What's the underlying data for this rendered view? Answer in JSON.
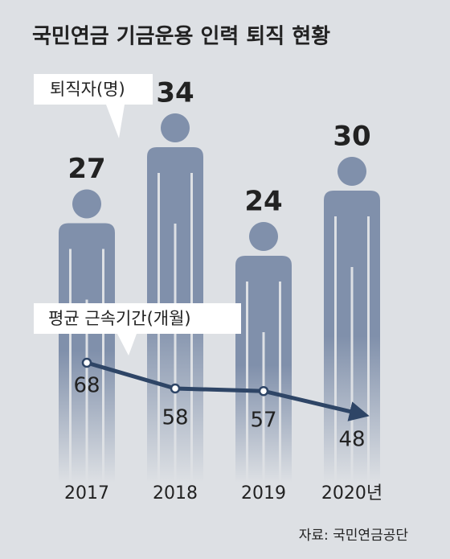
{
  "chart_data": {
    "type": "bar",
    "title": "국민연금 기금운용 인력 퇴직 현황",
    "categories": [
      "2017",
      "2018",
      "2019",
      "2020년"
    ],
    "series": [
      {
        "name": "퇴직자(명)",
        "type": "bar",
        "color": "#8090ab",
        "values": [
          27,
          34,
          24,
          30
        ]
      },
      {
        "name": "평균 근속기간(개월)",
        "type": "line",
        "color": "#2e4566",
        "values": [
          68,
          58,
          57,
          48
        ]
      }
    ],
    "source": "자료: 국민연금공단"
  }
}
